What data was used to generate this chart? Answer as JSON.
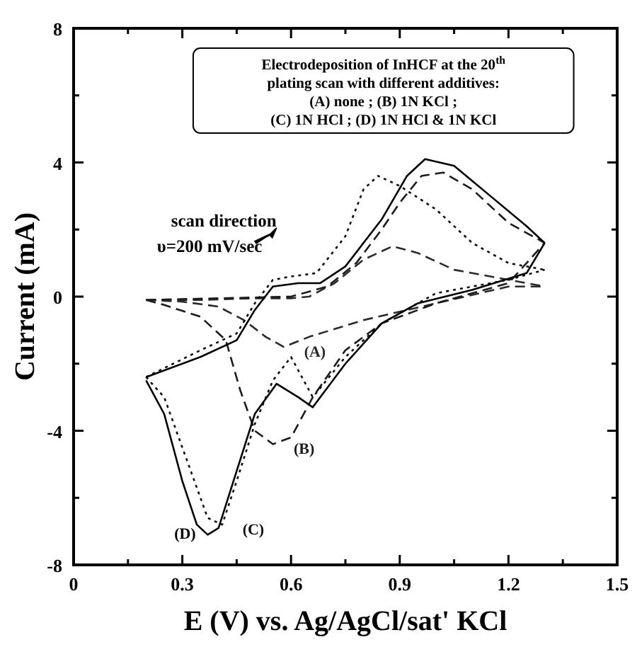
{
  "chart_data": {
    "type": "line",
    "title": "Electrodeposition of InHCF at the 20$^{th}$\nplating scan with different additives:\n(A) none ; (B) 1N KCl ;\n(C) 1N HCl ; (D) 1N HCl & 1N KCl",
    "xlabel": "E (V) vs. Ag/AgCl/sat' KCl",
    "ylabel": "Current (mA)",
    "xlim": [
      0,
      1.5
    ],
    "ylim": [
      -8,
      8
    ],
    "xticks": [
      0,
      {
        "value": 0.15,
        "label": null
      },
      0.3,
      {
        "value": 0.45,
        "label": null
      },
      0.6,
      {
        "value": 0.75,
        "label": null
      },
      0.9,
      {
        "value": 1.05,
        "label": null
      },
      1.2,
      {
        "value": 1.35,
        "label": null
      },
      1.5
    ],
    "yticks": [
      -8,
      {
        "value": -6,
        "label": null
      },
      -4,
      {
        "value": -2,
        "label": null
      },
      0,
      {
        "value": 2,
        "label": null
      },
      4,
      {
        "value": 6,
        "label": null
      },
      8
    ],
    "grid": false,
    "legend": false,
    "marker": "none",
    "series": [
      {
        "color": "#2a2a2a",
        "line_style": "dashed",
        "x": [
          0.2,
          0.35,
          0.5,
          0.6,
          0.65,
          0.72,
          0.8,
          0.88,
          0.95,
          1.05,
          1.2,
          1.3
        ],
        "values": [
          -0.1,
          -0.1,
          -0.05,
          -0.05,
          0,
          0.4,
          1.1,
          1.5,
          1.3,
          0.8,
          0.5,
          0.3
        ]
      },
      {
        "name": "(A)",
        "color": "#2a2a2a",
        "line_style": "dashed",
        "x": [
          0.2,
          0.3,
          0.4,
          0.47,
          0.53,
          0.58,
          0.65,
          0.8,
          1.0,
          1.2,
          1.3
        ],
        "values": [
          -0.1,
          -0.15,
          -0.3,
          -0.7,
          -1.2,
          -1.5,
          -1.2,
          -0.7,
          -0.2,
          0.3,
          0.3
        ]
      },
      {
        "color": "#1c1c1c",
        "line_style": "dashed",
        "x": [
          0.2,
          0.4,
          0.6,
          0.7,
          0.78,
          0.85,
          0.9,
          0.96,
          1.02,
          1.1,
          1.2,
          1.3
        ],
        "values": [
          -0.1,
          -0.05,
          0,
          0.3,
          1.0,
          2.0,
          2.8,
          3.6,
          3.7,
          3.2,
          2.2,
          1.6
        ]
      },
      {
        "name": "(B)",
        "color": "#1c1c1c",
        "line_style": "dashed",
        "x": [
          0.2,
          0.25,
          0.35,
          0.42,
          0.46,
          0.5,
          0.55,
          0.6,
          0.66,
          0.75,
          0.85,
          1.0,
          1.2,
          1.3
        ],
        "values": [
          -0.1,
          -0.25,
          -0.6,
          -1.3,
          -2.8,
          -4.0,
          -4.4,
          -4.2,
          -3.0,
          -1.6,
          -0.8,
          -0.2,
          0.4,
          1.6
        ]
      },
      {
        "color": "#0e0e0e",
        "line_style": "dotted",
        "x": [
          0.2,
          0.35,
          0.45,
          0.5,
          0.55,
          0.6,
          0.67,
          0.75,
          0.8,
          0.84,
          0.9,
          1.0,
          1.1,
          1.2,
          1.3
        ],
        "values": [
          -2.4,
          -1.6,
          -1.1,
          -0.2,
          0.5,
          0.6,
          0.7,
          1.8,
          3.2,
          3.6,
          3.3,
          2.6,
          1.6,
          1.0,
          0.8
        ]
      },
      {
        "name": "(C)",
        "color": "#0e0e0e",
        "line_style": "dotted",
        "x": [
          0.2,
          0.25,
          0.3,
          0.37,
          0.41,
          0.45,
          0.5,
          0.55,
          0.6,
          0.66,
          0.75,
          0.85,
          1.0,
          1.2,
          1.3
        ],
        "values": [
          -2.4,
          -3.0,
          -4.5,
          -6.6,
          -6.8,
          -5.5,
          -3.8,
          -2.5,
          -1.8,
          -3.0,
          -1.8,
          -0.8,
          0.1,
          0.5,
          0.8
        ]
      },
      {
        "color": "#000000",
        "line_style": "solid",
        "x": [
          0.2,
          0.35,
          0.45,
          0.5,
          0.55,
          0.62,
          0.68,
          0.75,
          0.85,
          0.92,
          0.97,
          1.05,
          1.15,
          1.25,
          1.3
        ],
        "values": [
          -2.4,
          -1.8,
          -1.3,
          -0.4,
          0.3,
          0.4,
          0.4,
          0.9,
          2.3,
          3.6,
          4.1,
          3.9,
          3.0,
          2.1,
          1.6
        ]
      },
      {
        "name": "(D)",
        "color": "#000000",
        "line_style": "solid",
        "x": [
          0.2,
          0.25,
          0.3,
          0.34,
          0.37,
          0.4,
          0.45,
          0.5,
          0.56,
          0.62,
          0.66,
          0.75,
          0.85,
          0.95,
          1.1,
          1.25,
          1.3
        ],
        "values": [
          -2.5,
          -3.5,
          -5.5,
          -6.8,
          -7.1,
          -6.9,
          -5.2,
          -3.5,
          -2.6,
          -3.0,
          -3.3,
          -2.0,
          -0.8,
          -0.2,
          0.2,
          0.7,
          1.6
        ]
      }
    ],
    "annotations": [
      "scan direction\nυ=200 mV/sec"
    ]
  }
}
